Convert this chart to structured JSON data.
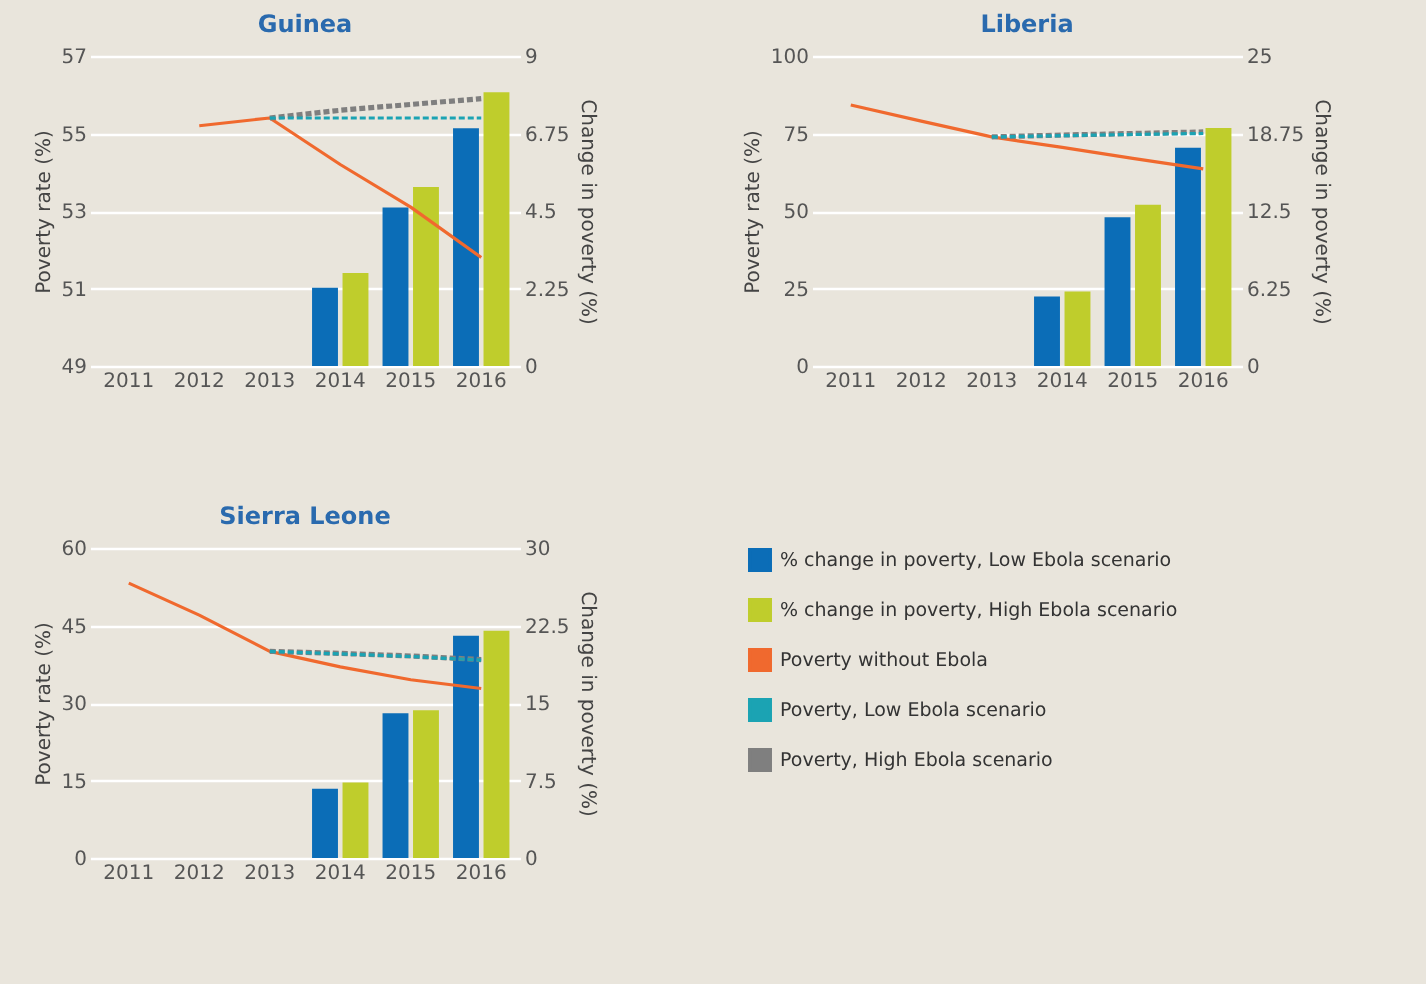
{
  "chart_data": [
    {
      "type": "bar",
      "title": "Guinea",
      "categories": [
        "2011",
        "2012",
        "2013",
        "2014",
        "2015",
        "2016"
      ],
      "ylabel": "Poverty rate (%)",
      "y2label": "Change in poverty (%)",
      "ylim": [
        49,
        57
      ],
      "yticks": [
        49,
        51,
        53,
        55,
        57
      ],
      "y2lim": [
        0,
        9
      ],
      "y2ticks": [
        0,
        2.25,
        4.5,
        6.75,
        9
      ],
      "grid": "y",
      "series": [
        {
          "color": "#0b6db7",
          "type": "bar",
          "axis": "y2",
          "values": [
            null,
            null,
            null,
            2.27,
            4.6,
            6.9
          ]
        },
        {
          "color": "#bfcd2c",
          "type": "bar",
          "axis": "y2",
          "values": [
            null,
            null,
            null,
            2.7,
            5.2,
            7.95
          ]
        },
        {
          "color": "#f0692e",
          "type": "line",
          "line_style": "solid",
          "values": [
            null,
            55.2,
            55.4,
            54.2,
            53.1,
            51.8
          ]
        },
        {
          "color": "#1ba3b3",
          "type": "line",
          "line_style": "dashed",
          "values": [
            null,
            null,
            55.4,
            55.4,
            55.4,
            55.4
          ]
        },
        {
          "color": "#7f7f7f",
          "type": "line",
          "line_style": "dashed",
          "values": [
            null,
            null,
            55.4,
            55.6,
            55.75,
            55.9
          ]
        }
      ]
    },
    {
      "type": "bar",
      "title": "Liberia",
      "categories": [
        "2011",
        "2012",
        "2013",
        "2014",
        "2015",
        "2016"
      ],
      "ylabel": "Poverty rate (%)",
      "y2label": "Change in poverty (%)",
      "ylim": [
        0,
        100
      ],
      "yticks": [
        0,
        25,
        50,
        75,
        100
      ],
      "y2lim": [
        0,
        25
      ],
      "y2ticks": [
        0,
        6.25,
        12.5,
        18.75,
        25
      ],
      "grid": "y",
      "series": [
        {
          "color": "#0b6db7",
          "type": "bar",
          "axis": "y2",
          "values": [
            null,
            null,
            null,
            5.6,
            12.0,
            17.6
          ]
        },
        {
          "color": "#bfcd2c",
          "type": "bar",
          "axis": "y2",
          "values": [
            null,
            null,
            null,
            6.0,
            13.0,
            19.2
          ]
        },
        {
          "color": "#f0692e",
          "type": "line",
          "line_style": "solid",
          "values": [
            84.2,
            79,
            73.9,
            70.5,
            67,
            63.6
          ]
        },
        {
          "color": "#1ba3b3",
          "type": "line",
          "line_style": "dashed",
          "values": [
            null,
            null,
            73.9,
            74.3,
            74.7,
            75
          ]
        },
        {
          "color": "#7f7f7f",
          "type": "line",
          "line_style": "dashed",
          "values": [
            null,
            null,
            73.9,
            74.5,
            75,
            75.5
          ]
        }
      ]
    },
    {
      "type": "bar",
      "title": "Sierra Leone",
      "categories": [
        "2011",
        "2012",
        "2013",
        "2014",
        "2015",
        "2016"
      ],
      "ylabel": "Poverty rate (%)",
      "y2label": "Change in poverty (%)",
      "ylim": [
        0,
        60
      ],
      "yticks": [
        0,
        15,
        30,
        45,
        60
      ],
      "y2lim": [
        0,
        30
      ],
      "y2ticks": [
        0,
        7.5,
        15,
        22.5,
        30
      ],
      "grid": "y",
      "legend": "right",
      "series": [
        {
          "name": "% change in poverty, Low Ebola scenario",
          "color": "#0b6db7",
          "type": "bar",
          "axis": "y2",
          "values": [
            null,
            null,
            null,
            6.7,
            14.0,
            21.5
          ]
        },
        {
          "name": "% change in poverty, High Ebola scenario",
          "color": "#bfcd2c",
          "type": "bar",
          "axis": "y2",
          "values": [
            null,
            null,
            null,
            7.3,
            14.3,
            22.0
          ]
        },
        {
          "name": "Poverty without Ebola",
          "color": "#f0692e",
          "type": "line",
          "line_style": "solid",
          "values": [
            53.2,
            47,
            40,
            37,
            34.5,
            32.8
          ]
        },
        {
          "name": "Poverty, Low Ebola scenario",
          "color": "#1ba3b3",
          "type": "line",
          "line_style": "dashed",
          "values": [
            null,
            null,
            40,
            39.5,
            39,
            38.3
          ]
        },
        {
          "name": "Poverty, High Ebola scenario",
          "color": "#7f7f7f",
          "type": "line",
          "line_style": "dashed",
          "values": [
            null,
            null,
            40,
            39.6,
            39.1,
            38.4
          ]
        }
      ]
    }
  ]
}
